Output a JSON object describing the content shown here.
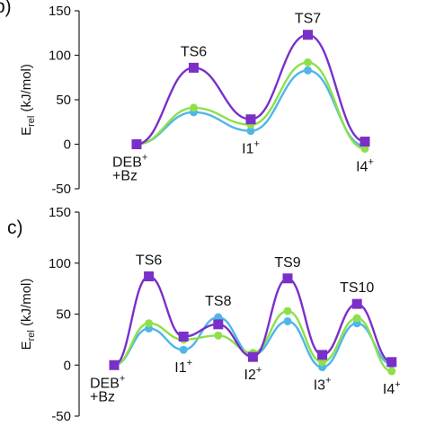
{
  "chart_data": [
    {
      "type": "line",
      "panel_label": "b)",
      "ylabel_main": "E",
      "ylabel_sub": "rel",
      "ylabel_rest": " (kJ/mol)",
      "ylim": [
        -50,
        150
      ],
      "yticks": [
        -50,
        0,
        50,
        100,
        150
      ],
      "grid": false,
      "x": [
        0,
        1,
        2,
        3,
        4
      ],
      "series": [
        {
          "color": "#7a2fc9",
          "marker": "square",
          "values": [
            0,
            86,
            28,
            123,
            3
          ]
        },
        {
          "color": "#8ee04a",
          "marker": "circle",
          "values": [
            0,
            41,
            22,
            92,
            -5
          ]
        },
        {
          "color": "#4fb6e8",
          "marker": "circle",
          "values": [
            0,
            36,
            15,
            83,
            -2
          ]
        }
      ],
      "annotations": [
        {
          "lines": [
            "DEB",
            "+Bz"
          ],
          "sup": "+",
          "x": 0,
          "pos": "below"
        },
        {
          "lines": [
            "TS6"
          ],
          "sup": "",
          "x": 1,
          "pos": "above"
        },
        {
          "lines": [
            "I1"
          ],
          "sup": "+",
          "x": 2,
          "pos": "below"
        },
        {
          "lines": [
            "TS7"
          ],
          "sup": "",
          "x": 3,
          "pos": "above"
        },
        {
          "lines": [
            "I4"
          ],
          "sup": "+",
          "x": 4,
          "pos": "below"
        }
      ]
    },
    {
      "type": "line",
      "panel_label": "c)",
      "ylabel_main": "E",
      "ylabel_sub": "rel",
      "ylabel_rest": " (kJ/mol)",
      "ylim": [
        -50,
        150
      ],
      "yticks": [
        -50,
        0,
        50,
        100,
        150
      ],
      "grid": false,
      "x": [
        0,
        1,
        2,
        3,
        4,
        5,
        6,
        7,
        8
      ],
      "series": [
        {
          "color": "#7a2fc9",
          "marker": "square",
          "values": [
            0,
            87,
            28,
            40,
            8,
            85,
            10,
            60,
            3
          ]
        },
        {
          "color": "#8ee04a",
          "marker": "circle",
          "values": [
            0,
            41,
            25,
            29,
            12,
            53,
            3,
            46,
            -6
          ]
        },
        {
          "color": "#4fb6e8",
          "marker": "circle",
          "values": [
            0,
            36,
            15,
            47,
            10,
            43,
            -2,
            41,
            1
          ]
        }
      ],
      "annotations": [
        {
          "lines": [
            "DEB",
            "+Bz"
          ],
          "sup": "+",
          "x": 0,
          "pos": "below"
        },
        {
          "lines": [
            "TS6"
          ],
          "sup": "",
          "x": 1,
          "pos": "above"
        },
        {
          "lines": [
            "I1"
          ],
          "sup": "+",
          "x": 2,
          "pos": "below"
        },
        {
          "lines": [
            "TS8"
          ],
          "sup": "",
          "x": 3,
          "pos": "above"
        },
        {
          "lines": [
            "I2"
          ],
          "sup": "+",
          "x": 4,
          "pos": "below"
        },
        {
          "lines": [
            "TS9"
          ],
          "sup": "",
          "x": 5,
          "pos": "above"
        },
        {
          "lines": [
            "I3"
          ],
          "sup": "+",
          "x": 6,
          "pos": "below"
        },
        {
          "lines": [
            "TS10"
          ],
          "sup": "",
          "x": 7,
          "pos": "above"
        },
        {
          "lines": [
            "I4"
          ],
          "sup": "+",
          "x": 8,
          "pos": "below"
        }
      ]
    }
  ]
}
